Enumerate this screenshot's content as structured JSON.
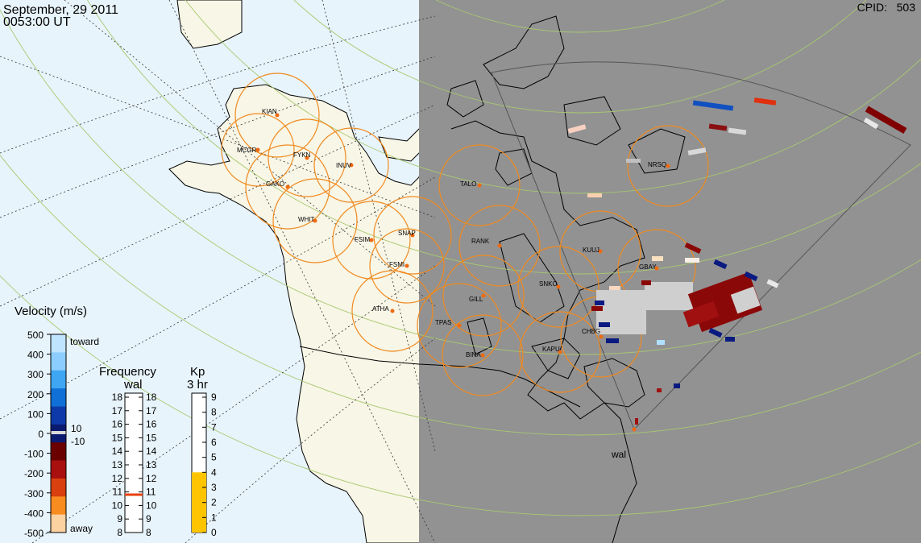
{
  "header": {
    "date": "September, 29 2011",
    "time": "0053:00 UT",
    "cpid": "CPID:   503"
  },
  "stations": [
    {
      "code": "KIAN"
    },
    {
      "code": "MCGR"
    },
    {
      "code": "FYKN"
    },
    {
      "code": "INUV"
    },
    {
      "code": "GAKO"
    },
    {
      "code": "WHIT"
    },
    {
      "code": "FSIM"
    },
    {
      "code": "SNAP"
    },
    {
      "code": "FSMI"
    },
    {
      "code": "TALO"
    },
    {
      "code": "RANK"
    },
    {
      "code": "KUUJ"
    },
    {
      "code": "GBAY"
    },
    {
      "code": "NRSQ"
    },
    {
      "code": "SNKO"
    },
    {
      "code": "GILL"
    },
    {
      "code": "ATHA"
    },
    {
      "code": "TPAS"
    },
    {
      "code": "CHBG"
    },
    {
      "code": "KAPU"
    },
    {
      "code": "BINA"
    }
  ],
  "radar_label": "wal",
  "velocity": {
    "title": "Velocity (m/s)",
    "toward": "toward",
    "away": "away",
    "ticks": [
      "500",
      "400",
      "300",
      "200",
      "100",
      "0",
      "-100",
      "-200",
      "-300",
      "-400",
      "-500"
    ],
    "inner_ticks": [
      "10",
      "-10"
    ],
    "colors": [
      "#bfe4ff",
      "#8ccdff",
      "#3ea6f2",
      "#1170d8",
      "#0d3aa8",
      "#0a1a70",
      "#6b0000",
      "#a81010",
      "#d84010",
      "#f88c20",
      "#fcd2a0"
    ]
  },
  "frequency": {
    "title": "Frequency",
    "subtitle": "wal",
    "ticks": [
      "18",
      "17",
      "16",
      "15",
      "14",
      "13",
      "12",
      "11",
      "10",
      "9",
      "8"
    ],
    "value_mhz": 10.8,
    "marker_color": "#e84010"
  },
  "kp": {
    "title": "Kp",
    "subtitle": "3 hr",
    "ticks": [
      "9",
      "8",
      "7",
      "6",
      "5",
      "4",
      "3",
      "2",
      "1",
      "0"
    ],
    "value": 4,
    "fill_color": "#ffc400"
  }
}
